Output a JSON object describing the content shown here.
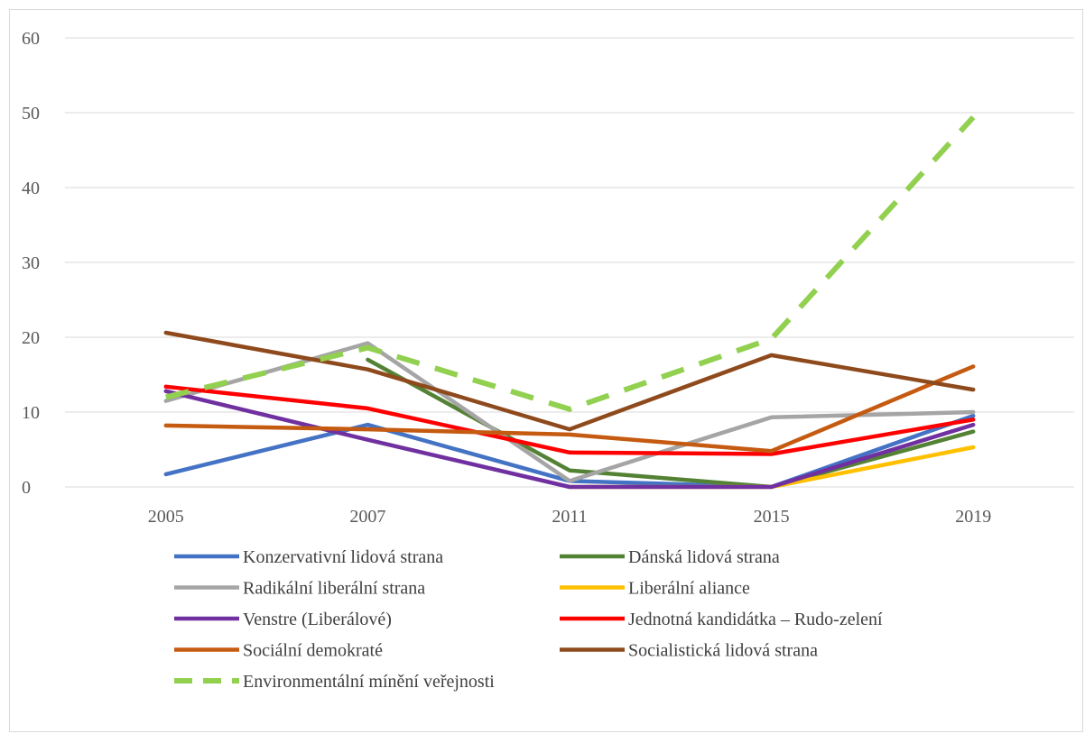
{
  "chart_data": {
    "type": "line",
    "title": "",
    "xlabel": "",
    "ylabel": "",
    "categories": [
      "2005",
      "2007",
      "2011",
      "2015",
      "2019"
    ],
    "ylim": [
      0,
      60
    ],
    "yticks": [
      0,
      10,
      20,
      30,
      40,
      50,
      60
    ],
    "grid": true,
    "legend_position": "bottom",
    "series": [
      {
        "name": "Konzervativní lidová strana",
        "color": "#4472C4",
        "dashed": false,
        "values": [
          1.7,
          8.3,
          0.8,
          0.0,
          9.5
        ]
      },
      {
        "name": "Dánská lidová strana",
        "color": "#548235",
        "dashed": false,
        "values": [
          null,
          17.0,
          2.2,
          0.0,
          7.4
        ]
      },
      {
        "name": "Radikální liberální strana",
        "color": "#A5A5A5",
        "dashed": false,
        "values": [
          11.5,
          19.2,
          0.8,
          9.3,
          10.0
        ]
      },
      {
        "name": "Liberální aliance",
        "color": "#FFC000",
        "dashed": false,
        "values": [
          null,
          null,
          0.0,
          0.0,
          5.3
        ]
      },
      {
        "name": "Venstre (Liberálové)",
        "color": "#7030A0",
        "dashed": false,
        "values": [
          12.8,
          6.3,
          0.0,
          0.0,
          8.3
        ]
      },
      {
        "name": "Jednotná kandidátka – Rudo-zelení",
        "color": "#FF0000",
        "dashed": false,
        "values": [
          13.4,
          10.5,
          4.6,
          4.4,
          9.0
        ]
      },
      {
        "name": "Sociální demokraté",
        "color": "#C55A11",
        "dashed": false,
        "values": [
          8.2,
          7.7,
          7.0,
          4.8,
          16.1
        ]
      },
      {
        "name": "Socialistická lidová strana",
        "color": "#8E4A1C",
        "dashed": false,
        "values": [
          20.6,
          15.7,
          7.7,
          17.6,
          13.0
        ]
      },
      {
        "name": "Environmentální mínění veřejnosti",
        "color": "#92D050",
        "dashed": true,
        "values": [
          12.0,
          18.6,
          10.4,
          19.8,
          49.4
        ]
      }
    ]
  }
}
